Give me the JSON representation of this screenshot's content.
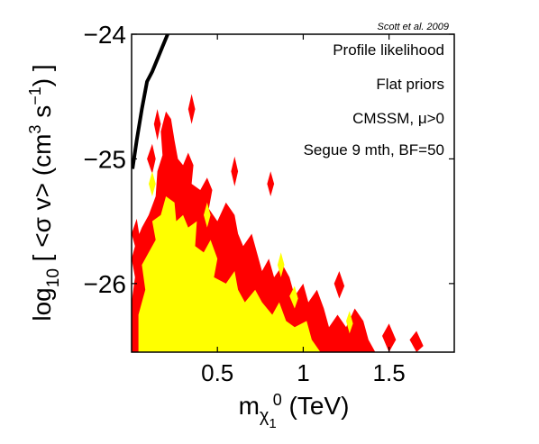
{
  "chart_data": {
    "type": "heatmap",
    "credit": "Scott et al. 2009",
    "annotations": [
      "Profile likelihood",
      "Flat priors",
      "CMSSM, μ>0",
      "Segue 9 mth, BF=50"
    ],
    "xlabel": {
      "main": "m",
      "sub": "χ",
      "subsub": "1",
      "sup": "0",
      "unit": " (TeV)"
    },
    "ylabel": {
      "main": "log",
      "sub": "10",
      "body1": " [ <σ v> (cm",
      "sup1": "3",
      "body2": " s",
      "sup2": "−1",
      "body3": ") ]"
    },
    "xlim": [
      0,
      1.88
    ],
    "ylim": [
      -26.55,
      -24
    ],
    "x_ticks": [
      {
        "v": 0.5,
        "label": "0.5"
      },
      {
        "v": 1,
        "label": "1"
      },
      {
        "v": 1.5,
        "label": "1.5"
      }
    ],
    "y_ticks": [
      {
        "v": -24,
        "label": "−24"
      },
      {
        "v": -25,
        "label": "−25"
      },
      {
        "v": -26,
        "label": "−26"
      }
    ],
    "grid": false,
    "colors": {
      "outer": "#ff0000",
      "inner": "#ffff00",
      "curve": "#000000"
    },
    "curve": {
      "name": "",
      "x": [
        0.005,
        0.03,
        0.06,
        0.09,
        0.12,
        0.15,
        0.18,
        0.21
      ],
      "y": [
        -25.08,
        -24.85,
        -24.6,
        -24.38,
        -24.3,
        -24.2,
        -24.1,
        -24.0
      ]
    },
    "regions": [
      {
        "level": "outer",
        "points": [
          [
            0.0,
            -26.55
          ],
          [
            0.0,
            -26.15
          ],
          [
            0.02,
            -25.95
          ],
          [
            0.0,
            -25.8
          ],
          [
            0.03,
            -25.65
          ],
          [
            0.06,
            -25.55
          ],
          [
            0.1,
            -25.45
          ],
          [
            0.14,
            -25.3
          ],
          [
            0.15,
            -25.1
          ],
          [
            0.18,
            -24.97
          ],
          [
            0.17,
            -24.78
          ],
          [
            0.2,
            -24.62
          ],
          [
            0.23,
            -24.68
          ],
          [
            0.25,
            -24.85
          ],
          [
            0.27,
            -25.0
          ],
          [
            0.3,
            -25.05
          ],
          [
            0.33,
            -24.95
          ],
          [
            0.36,
            -25.05
          ],
          [
            0.35,
            -25.2
          ],
          [
            0.4,
            -25.25
          ],
          [
            0.44,
            -25.15
          ],
          [
            0.47,
            -25.25
          ],
          [
            0.45,
            -25.4
          ],
          [
            0.5,
            -25.5
          ],
          [
            0.55,
            -25.35
          ],
          [
            0.6,
            -25.45
          ],
          [
            0.62,
            -25.6
          ],
          [
            0.65,
            -25.7
          ],
          [
            0.7,
            -25.6
          ],
          [
            0.73,
            -25.75
          ],
          [
            0.76,
            -25.9
          ],
          [
            0.8,
            -25.8
          ],
          [
            0.83,
            -25.95
          ],
          [
            0.88,
            -25.85
          ],
          [
            0.92,
            -25.95
          ],
          [
            0.95,
            -26.1
          ],
          [
            1.0,
            -26.0
          ],
          [
            1.03,
            -26.15
          ],
          [
            1.08,
            -26.05
          ],
          [
            1.12,
            -26.2
          ],
          [
            1.15,
            -26.35
          ],
          [
            1.2,
            -26.25
          ],
          [
            1.25,
            -26.35
          ],
          [
            1.3,
            -26.2
          ],
          [
            1.35,
            -26.3
          ],
          [
            1.38,
            -26.45
          ],
          [
            1.42,
            -26.55
          ]
        ]
      },
      {
        "level": "inner",
        "points": [
          [
            0.04,
            -26.55
          ],
          [
            0.04,
            -26.25
          ],
          [
            0.08,
            -26.05
          ],
          [
            0.06,
            -25.85
          ],
          [
            0.1,
            -25.75
          ],
          [
            0.14,
            -25.65
          ],
          [
            0.12,
            -25.5
          ],
          [
            0.17,
            -25.45
          ],
          [
            0.2,
            -25.3
          ],
          [
            0.25,
            -25.35
          ],
          [
            0.26,
            -25.5
          ],
          [
            0.3,
            -25.45
          ],
          [
            0.33,
            -25.55
          ],
          [
            0.38,
            -25.5
          ],
          [
            0.37,
            -25.7
          ],
          [
            0.42,
            -25.75
          ],
          [
            0.46,
            -25.65
          ],
          [
            0.5,
            -25.8
          ],
          [
            0.48,
            -25.95
          ],
          [
            0.55,
            -26.0
          ],
          [
            0.6,
            -25.9
          ],
          [
            0.62,
            -26.05
          ],
          [
            0.66,
            -26.15
          ],
          [
            0.72,
            -26.05
          ],
          [
            0.76,
            -26.15
          ],
          [
            0.82,
            -26.25
          ],
          [
            0.86,
            -26.15
          ],
          [
            0.9,
            -26.3
          ],
          [
            0.95,
            -26.35
          ],
          [
            1.02,
            -26.3
          ],
          [
            1.05,
            -26.45
          ],
          [
            1.1,
            -26.55
          ]
        ]
      },
      {
        "level": "outer",
        "points": [
          [
            0.13,
            -24.72
          ],
          [
            0.15,
            -24.6
          ],
          [
            0.17,
            -24.72
          ],
          [
            0.15,
            -24.85
          ]
        ]
      },
      {
        "level": "outer",
        "points": [
          [
            0.33,
            -24.6
          ],
          [
            0.35,
            -24.48
          ],
          [
            0.37,
            -24.6
          ],
          [
            0.35,
            -24.72
          ]
        ]
      },
      {
        "level": "outer",
        "points": [
          [
            0.09,
            -25.0
          ],
          [
            0.12,
            -24.88
          ],
          [
            0.14,
            -25.0
          ],
          [
            0.12,
            -25.12
          ]
        ]
      },
      {
        "level": "outer",
        "points": [
          [
            0.58,
            -25.1
          ],
          [
            0.6,
            -24.98
          ],
          [
            0.62,
            -25.1
          ],
          [
            0.6,
            -25.22
          ]
        ]
      },
      {
        "level": "outer",
        "points": [
          [
            0.79,
            -25.2
          ],
          [
            0.81,
            -25.1
          ],
          [
            0.83,
            -25.2
          ],
          [
            0.81,
            -25.3
          ]
        ]
      },
      {
        "level": "outer",
        "points": [
          [
            0.0,
            -25.6
          ],
          [
            0.03,
            -25.48
          ],
          [
            0.05,
            -25.65
          ],
          [
            0.03,
            -25.75
          ]
        ]
      },
      {
        "level": "outer",
        "points": [
          [
            1.46,
            -26.42
          ],
          [
            1.5,
            -26.32
          ],
          [
            1.54,
            -26.45
          ],
          [
            1.5,
            -26.55
          ]
        ]
      },
      {
        "level": "outer",
        "points": [
          [
            1.62,
            -26.45
          ],
          [
            1.66,
            -26.38
          ],
          [
            1.7,
            -26.5
          ],
          [
            1.66,
            -26.55
          ]
        ]
      },
      {
        "level": "outer",
        "points": [
          [
            1.18,
            -26.0
          ],
          [
            1.21,
            -25.9
          ],
          [
            1.24,
            -26.02
          ],
          [
            1.21,
            -26.12
          ]
        ]
      },
      {
        "level": "inner",
        "points": [
          [
            0.1,
            -25.2
          ],
          [
            0.12,
            -25.1
          ],
          [
            0.14,
            -25.2
          ],
          [
            0.12,
            -25.3
          ]
        ]
      },
      {
        "level": "inner",
        "points": [
          [
            0.42,
            -25.45
          ],
          [
            0.44,
            -25.35
          ],
          [
            0.46,
            -25.45
          ],
          [
            0.44,
            -25.55
          ]
        ]
      },
      {
        "level": "inner",
        "points": [
          [
            0.85,
            -25.85
          ],
          [
            0.87,
            -25.75
          ],
          [
            0.89,
            -25.85
          ],
          [
            0.87,
            -25.95
          ]
        ]
      },
      {
        "level": "inner",
        "points": [
          [
            1.25,
            -26.3
          ],
          [
            1.27,
            -26.22
          ],
          [
            1.29,
            -26.32
          ],
          [
            1.27,
            -26.4
          ]
        ]
      },
      {
        "level": "inner",
        "points": [
          [
            0.92,
            -26.1
          ],
          [
            0.95,
            -26.02
          ],
          [
            0.97,
            -26.12
          ],
          [
            0.95,
            -26.2
          ]
        ]
      }
    ]
  }
}
